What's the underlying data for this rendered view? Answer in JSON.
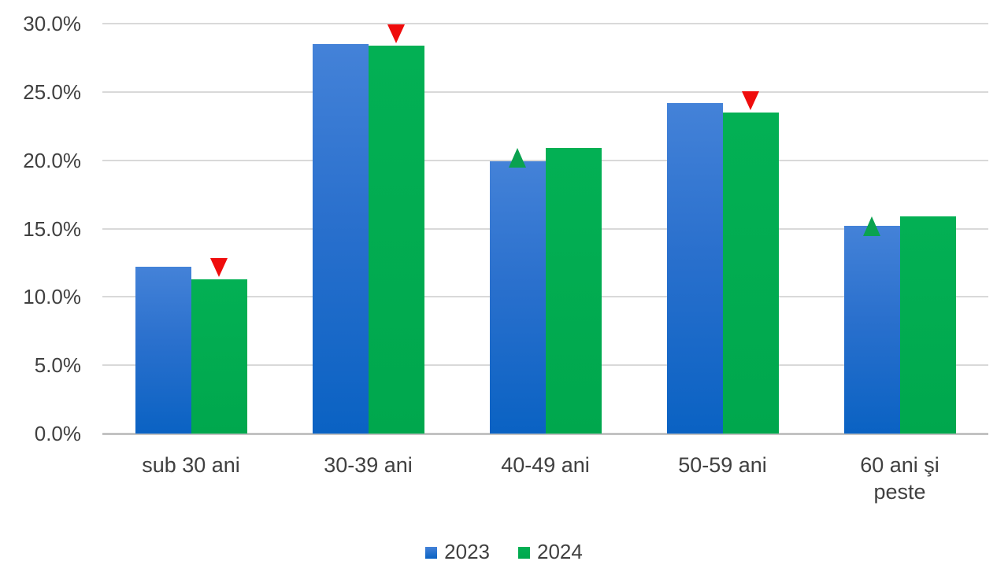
{
  "chart_data": {
    "type": "bar",
    "title": "",
    "xlabel": "",
    "ylabel": "",
    "unit": "%",
    "categories": [
      "sub 30 ani",
      "30-39 ani",
      "40-49 ani",
      "50-59 ani",
      "60 ani şi peste"
    ],
    "series": [
      {
        "name": "2023",
        "color_top": "#4482d8",
        "color_bottom": "#0a62c3",
        "values": [
          12.2,
          28.5,
          19.9,
          24.2,
          15.2
        ]
      },
      {
        "name": "2024",
        "color_top": "#03b054",
        "color_bottom": "#00a74d",
        "values": [
          11.3,
          28.4,
          20.9,
          23.5,
          15.9
        ]
      }
    ],
    "ylim": [
      0,
      30
    ],
    "ytick_step": 5,
    "ytick_labels": [
      "0.0%",
      "5.0%",
      "10.0%",
      "15.0%",
      "20.0%",
      "25.0%",
      "30.0%"
    ],
    "grid": true,
    "legend_position": "bottom",
    "change_markers": [
      {
        "category": "sub 30 ani",
        "direction": "down",
        "color": "#ef0c0c",
        "meaning": "decrease vs 2023"
      },
      {
        "category": "30-39 ani",
        "direction": "down",
        "color": "#ef0c0c",
        "meaning": "decrease vs 2023"
      },
      {
        "category": "40-49 ani",
        "direction": "up",
        "color": "#0aa24f",
        "meaning": "increase vs 2023"
      },
      {
        "category": "50-59 ani",
        "direction": "down",
        "color": "#ef0c0c",
        "meaning": "decrease vs 2023"
      },
      {
        "category": "60 ani şi peste",
        "direction": "up",
        "color": "#0aa24f",
        "meaning": "increase vs 2023"
      }
    ],
    "colors": {
      "text": "#404040",
      "gridline": "#d9d9d9",
      "axis_line": "#c2c2c2",
      "series_2023_top": "#4482d8",
      "series_2023_bottom": "#0a62c3",
      "series_2024": "#00a94f",
      "marker_down": "#ef0c0c",
      "marker_up": "#0aa24f"
    }
  }
}
